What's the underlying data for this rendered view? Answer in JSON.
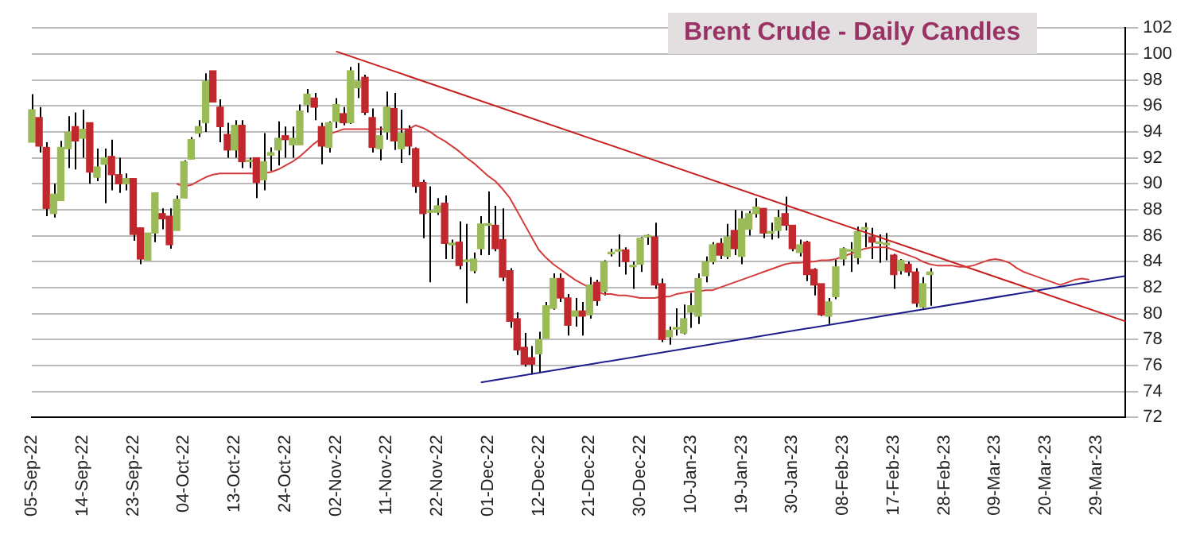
{
  "chart_data": {
    "type": "candlestick",
    "title": "Brent Crude - Daily Candles",
    "categories": [
      "05-Sep-22",
      null,
      null,
      null,
      null,
      null,
      null,
      "14-Sep-22",
      null,
      null,
      null,
      null,
      null,
      null,
      "23-Sep-22",
      null,
      null,
      null,
      null,
      null,
      null,
      "04-Oct-22",
      null,
      null,
      null,
      null,
      null,
      null,
      "13-Oct-22",
      null,
      null,
      null,
      null,
      null,
      null,
      "24-Oct-22",
      null,
      null,
      null,
      null,
      null,
      null,
      "02-Nov-22",
      null,
      null,
      null,
      null,
      null,
      null,
      "11-Nov-22",
      null,
      null,
      null,
      null,
      null,
      null,
      "22-Nov-22",
      null,
      null,
      null,
      null,
      null,
      null,
      "01-Dec-22",
      null,
      null,
      null,
      null,
      null,
      null,
      "12-Dec-22",
      null,
      null,
      null,
      null,
      null,
      null,
      "21-Dec-22",
      null,
      null,
      null,
      null,
      null,
      null,
      "30-Dec-22",
      null,
      null,
      null,
      null,
      null,
      null,
      "10-Jan-23",
      null,
      null,
      null,
      null,
      null,
      null,
      "19-Jan-23",
      null,
      null,
      null,
      null,
      null,
      null,
      "30-Jan-23",
      null,
      null,
      null,
      null,
      null,
      null,
      "08-Feb-23",
      null,
      null,
      null,
      null,
      null,
      null,
      "17-Feb-23",
      null,
      null,
      null,
      null,
      null,
      null,
      "28-Feb-23",
      null,
      null,
      null,
      null,
      null,
      null,
      "09-Mar-23",
      null,
      null,
      null,
      null,
      null,
      null,
      "20-Mar-23",
      null,
      null,
      null,
      null,
      null,
      null,
      "29-Mar-23",
      null,
      null,
      null,
      null
    ],
    "ohlc": [
      [
        93.2,
        96.9,
        93.2,
        95.7
      ],
      [
        95.1,
        95.9,
        92.4,
        92.9
      ],
      [
        92.8,
        93.2,
        87.5,
        88.1
      ],
      [
        87.7,
        90.0,
        87.4,
        89.2
      ],
      [
        88.7,
        93.3,
        88.7,
        92.8
      ],
      [
        92.7,
        95.2,
        91.2,
        94.0
      ],
      [
        94.4,
        95.5,
        91.1,
        93.3
      ],
      [
        93.5,
        95.7,
        92.0,
        94.2
      ],
      [
        94.7,
        94.7,
        90.0,
        90.9
      ],
      [
        90.5,
        92.7,
        90.2,
        91.3
      ],
      [
        91.5,
        92.7,
        88.5,
        92.0
      ],
      [
        92.1,
        93.4,
        89.5,
        90.7
      ],
      [
        90.7,
        92.0,
        89.3,
        90.0
      ],
      [
        90.0,
        90.8,
        89.5,
        90.4
      ],
      [
        90.4,
        90.4,
        85.6,
        86.1
      ],
      [
        86.6,
        86.6,
        83.8,
        84.2
      ],
      [
        84.1,
        86.2,
        84.1,
        86.2
      ],
      [
        86.2,
        89.3,
        85.5,
        89.3
      ],
      [
        87.7,
        88.1,
        86.5,
        87.3
      ],
      [
        87.5,
        88.1,
        85.0,
        85.3
      ],
      [
        86.4,
        89.1,
        86.4,
        88.8
      ],
      [
        88.9,
        91.8,
        88.9,
        91.7
      ],
      [
        91.9,
        93.6,
        91.9,
        93.4
      ],
      [
        93.9,
        94.9,
        93.6,
        94.4
      ],
      [
        94.7,
        98.5,
        94.0,
        97.9
      ],
      [
        98.7,
        98.7,
        96.3,
        96.3
      ],
      [
        95.9,
        96.5,
        93.2,
        94.4
      ],
      [
        93.8,
        94.7,
        92.0,
        92.6
      ],
      [
        92.6,
        94.9,
        92.0,
        94.5
      ],
      [
        94.5,
        94.9,
        91.2,
        91.7
      ],
      [
        91.7,
        92.0,
        91.2,
        91.7
      ],
      [
        92.0,
        92.0,
        88.9,
        90.1
      ],
      [
        90.3,
        93.9,
        89.5,
        91.7
      ],
      [
        92.2,
        92.8,
        91.0,
        92.4
      ],
      [
        92.6,
        94.8,
        91.4,
        93.5
      ],
      [
        93.7,
        94.4,
        92.0,
        93.4
      ],
      [
        93.0,
        94.4,
        92.0,
        93.5
      ],
      [
        93.0,
        96.1,
        93.0,
        95.6
      ],
      [
        96.1,
        97.3,
        95.5,
        96.9
      ],
      [
        96.6,
        97.0,
        94.9,
        95.9
      ],
      [
        94.4,
        94.7,
        91.5,
        92.9
      ],
      [
        92.8,
        94.8,
        92.4,
        94.7
      ],
      [
        94.8,
        96.6,
        94.3,
        96.1
      ],
      [
        95.4,
        95.9,
        94.5,
        94.7
      ],
      [
        94.7,
        99.0,
        94.6,
        98.7
      ],
      [
        97.4,
        99.3,
        96.6,
        97.9
      ],
      [
        98.2,
        98.4,
        95.3,
        95.5
      ],
      [
        95.1,
        95.8,
        92.4,
        92.8
      ],
      [
        92.7,
        94.4,
        91.8,
        93.7
      ],
      [
        94.0,
        97.1,
        93.4,
        95.9
      ],
      [
        95.8,
        97.0,
        92.6,
        93.3
      ],
      [
        92.7,
        95.7,
        91.6,
        93.9
      ],
      [
        94.2,
        94.5,
        92.2,
        92.9
      ],
      [
        92.7,
        92.8,
        89.3,
        89.8
      ],
      [
        90.1,
        90.3,
        85.8,
        87.7
      ],
      [
        87.8,
        89.8,
        82.4,
        87.8
      ],
      [
        87.8,
        88.9,
        87.6,
        88.3
      ],
      [
        88.5,
        89.1,
        84.2,
        85.4
      ],
      [
        85.3,
        85.7,
        84.2,
        85.3
      ],
      [
        85.5,
        87.1,
        83.4,
        83.7
      ],
      [
        84.0,
        86.9,
        80.8,
        84.0
      ],
      [
        83.3,
        84.7,
        83.1,
        84.2
      ],
      [
        85.0,
        87.5,
        84.5,
        86.9
      ],
      [
        86.8,
        89.4,
        84.5,
        86.8
      ],
      [
        86.8,
        88.3,
        84.8,
        85.0
      ],
      [
        85.7,
        88.1,
        82.5,
        82.8
      ],
      [
        83.3,
        83.5,
        78.9,
        79.4
      ],
      [
        79.6,
        80.1,
        76.8,
        77.2
      ],
      [
        77.4,
        78.5,
        75.9,
        76.1
      ],
      [
        76.6,
        77.5,
        75.3,
        76.1
      ],
      [
        76.9,
        78.6,
        75.5,
        78.0
      ],
      [
        78.1,
        80.9,
        78.1,
        80.6
      ],
      [
        80.4,
        83.1,
        80.3,
        82.7
      ],
      [
        82.7,
        83.1,
        80.9,
        81.2
      ],
      [
        81.2,
        81.5,
        78.3,
        79.1
      ],
      [
        79.8,
        81.2,
        79.0,
        80.2
      ],
      [
        80.2,
        80.9,
        78.3,
        79.8
      ],
      [
        79.9,
        82.8,
        79.6,
        82.2
      ],
      [
        82.4,
        82.6,
        80.6,
        81.0
      ],
      [
        81.7,
        84.1,
        81.4,
        84.0
      ],
      [
        84.6,
        85.0,
        84.4,
        84.7
      ],
      [
        84.8,
        86.1,
        83.6,
        84.9
      ],
      [
        84.9,
        85.1,
        83.0,
        84.0
      ],
      [
        83.6,
        84.0,
        81.9,
        83.6
      ],
      [
        83.8,
        85.9,
        83.2,
        85.8
      ],
      [
        85.9,
        86.1,
        85.3,
        86.0
      ],
      [
        85.9,
        87.0,
        81.9,
        82.2
      ],
      [
        82.3,
        82.7,
        77.8,
        78.0
      ],
      [
        78.2,
        79.0,
        77.6,
        78.7
      ],
      [
        78.8,
        80.4,
        78.3,
        78.8
      ],
      [
        78.5,
        80.7,
        78.4,
        79.6
      ],
      [
        80.1,
        81.6,
        78.9,
        80.6
      ],
      [
        79.8,
        83.1,
        79.2,
        82.7
      ],
      [
        82.9,
        84.4,
        82.4,
        84.0
      ],
      [
        84.0,
        85.5,
        83.8,
        85.3
      ],
      [
        85.4,
        85.8,
        84.2,
        84.5
      ],
      [
        84.4,
        86.9,
        84.2,
        85.9
      ],
      [
        86.4,
        88.0,
        84.5,
        85.0
      ],
      [
        84.4,
        87.9,
        83.8,
        87.3
      ],
      [
        86.5,
        87.9,
        86.0,
        87.7
      ],
      [
        87.7,
        88.9,
        87.4,
        88.2
      ],
      [
        88.1,
        88.1,
        85.8,
        86.2
      ],
      [
        86.2,
        87.0,
        85.7,
        86.2
      ],
      [
        86.4,
        88.0,
        85.8,
        87.4
      ],
      [
        87.7,
        89.0,
        86.4,
        86.8
      ],
      [
        86.8,
        86.8,
        84.8,
        85.0
      ],
      [
        84.7,
        85.7,
        84.4,
        85.3
      ],
      [
        85.5,
        85.6,
        82.5,
        83.0
      ],
      [
        83.4,
        83.5,
        81.4,
        82.2
      ],
      [
        82.3,
        82.3,
        79.8,
        79.9
      ],
      [
        79.8,
        81.2,
        79.2,
        80.9
      ],
      [
        81.3,
        84.2,
        81.1,
        83.6
      ],
      [
        84.2,
        85.1,
        83.7,
        85.0
      ],
      [
        84.8,
        85.5,
        83.2,
        84.8
      ],
      [
        84.3,
        86.7,
        83.8,
        86.3
      ],
      [
        86.5,
        87.0,
        85.1,
        86.5
      ],
      [
        85.9,
        86.6,
        84.2,
        85.5
      ],
      [
        85.4,
        86.1,
        83.9,
        85.4
      ],
      [
        85.3,
        86.2,
        84.1,
        85.3
      ],
      [
        84.5,
        84.6,
        81.9,
        83.0
      ],
      [
        83.3,
        84.2,
        83.0,
        84.1
      ],
      [
        83.8,
        84.0,
        82.9,
        83.2
      ],
      [
        83.2,
        83.5,
        80.5,
        80.8
      ],
      [
        80.5,
        82.8,
        80.4,
        82.3
      ],
      [
        83.0,
        83.5,
        80.6,
        83.2
      ],
      null,
      null,
      null,
      null,
      null,
      null,
      null,
      null,
      null,
      null,
      null,
      null,
      null,
      null,
      null,
      null,
      null,
      null,
      null,
      null,
      null,
      null,
      null,
      null,
      null,
      null,
      null
    ],
    "colors": [
      "#9bbb59",
      "#c0282d",
      "#c0282d",
      "#9bbb59",
      "#9bbb59",
      "#9bbb59",
      "#c0282d",
      "#9bbb59",
      "#c0282d",
      "#9bbb59",
      "#9bbb59",
      "#c0282d",
      "#c0282d",
      "#9bbb59",
      "#c0282d",
      "#c0282d",
      "#9bbb59",
      "#9bbb59",
      "#c0282d",
      "#c0282d",
      "#9bbb59",
      "#9bbb59",
      "#9bbb59",
      "#9bbb59",
      "#9bbb59",
      "#c0282d",
      "#c0282d",
      "#c0282d",
      "#9bbb59",
      "#c0282d",
      "#9bbb59",
      "#c0282d",
      "#9bbb59",
      "#9bbb59",
      "#9bbb59",
      "#c0282d",
      "#9bbb59",
      "#9bbb59",
      "#9bbb59",
      "#c0282d",
      "#c0282d",
      "#9bbb59",
      "#9bbb59",
      "#c0282d",
      "#9bbb59",
      "#9bbb59",
      "#c0282d",
      "#c0282d",
      "#9bbb59",
      "#9bbb59",
      "#c0282d",
      "#9bbb59",
      "#c0282d",
      "#c0282d",
      "#c0282d",
      "#9bbb59",
      "#9bbb59",
      "#c0282d",
      "#9bbb59",
      "#c0282d",
      "#9bbb59",
      "#9bbb59",
      "#9bbb59",
      "#9bbb59",
      "#c0282d",
      "#c0282d",
      "#c0282d",
      "#c0282d",
      "#c0282d",
      "#c0282d",
      "#9bbb59",
      "#9bbb59",
      "#9bbb59",
      "#c0282d",
      "#c0282d",
      "#9bbb59",
      "#c0282d",
      "#9bbb59",
      "#c0282d",
      "#9bbb59",
      "#9bbb59",
      "#9bbb59",
      "#c0282d",
      "#9bbb59",
      "#9bbb59",
      "#9bbb59",
      "#c0282d",
      "#c0282d",
      "#9bbb59",
      "#9bbb59",
      "#9bbb59",
      "#9bbb59",
      "#9bbb59",
      "#9bbb59",
      "#9bbb59",
      "#c0282d",
      "#9bbb59",
      "#c0282d",
      "#9bbb59",
      "#9bbb59",
      "#9bbb59",
      "#c0282d",
      "#9bbb59",
      "#9bbb59",
      "#c0282d",
      "#c0282d",
      "#9bbb59",
      "#c0282d",
      "#c0282d",
      "#c0282d",
      "#9bbb59",
      "#9bbb59",
      "#9bbb59",
      "#9bbb59",
      "#9bbb59",
      "#9bbb59",
      "#c0282d",
      "#9bbb59",
      "#9bbb59",
      "#c0282d",
      "#9bbb59",
      "#c0282d",
      "#c0282d",
      "#9bbb59",
      "#9bbb59",
      null,
      null,
      null,
      null,
      null,
      null,
      null,
      null,
      null,
      null,
      null,
      null,
      null,
      null,
      null,
      null,
      null,
      null,
      null,
      null,
      null,
      null,
      null,
      null,
      null,
      null,
      null
    ],
    "series": [
      {
        "type": "line",
        "color": "#d43c3c",
        "values": [
          null,
          null,
          null,
          null,
          null,
          null,
          null,
          null,
          null,
          null,
          null,
          null,
          null,
          null,
          null,
          null,
          null,
          null,
          null,
          null,
          90.0,
          89.8,
          89.9,
          90.2,
          90.5,
          90.7,
          90.8,
          90.8,
          90.8,
          90.8,
          90.8,
          90.8,
          90.8,
          90.9,
          91.1,
          91.4,
          91.7,
          92.1,
          92.6,
          93.1,
          93.5,
          93.8,
          94.0,
          94.2,
          94.2,
          94.2,
          94.2,
          94.2,
          94.2,
          94.2,
          94.2,
          94.2,
          94.2,
          94.5,
          94.3,
          94.0,
          93.6,
          93.3,
          92.9,
          92.5,
          92.0,
          91.6,
          91.1,
          90.6,
          90.2,
          89.6,
          88.9,
          87.9,
          86.9,
          85.9,
          84.9,
          84.3,
          83.8,
          83.4,
          83.0,
          82.6,
          82.3,
          82.0,
          81.7,
          81.5,
          81.5,
          81.4,
          81.4,
          81.3,
          81.2,
          81.2,
          81.2,
          81.3,
          81.3,
          81.5,
          81.6,
          81.7,
          81.7,
          81.8,
          81.8,
          82.0,
          82.2,
          82.4,
          82.6,
          82.8,
          83.0,
          83.2,
          83.4,
          83.6,
          83.8,
          83.9,
          83.9,
          84.0,
          84.0,
          84.1,
          84.1,
          84.2,
          84.4,
          84.6,
          84.8,
          85.0,
          85.1,
          85.1,
          85.1,
          84.9,
          84.7,
          84.5,
          84.3,
          84.0,
          83.8,
          83.7,
          83.7,
          83.7,
          83.6,
          83.6,
          83.7,
          83.9,
          84.1,
          84.2,
          84.1,
          83.9,
          83.5,
          83.2,
          83.0,
          82.8,
          82.6,
          82.4,
          82.2,
          82.4,
          82.6,
          82.7,
          82.6,
          null,
          null,
          null,
          null,
          null
        ]
      },
      {
        "type": "line",
        "color": "#c81e1e",
        "values": [
          null,
          null,
          null,
          null,
          null,
          null,
          null,
          null,
          null,
          null,
          null,
          null,
          null,
          null,
          null,
          null,
          null,
          null,
          null,
          null,
          null,
          null,
          null,
          null,
          null,
          null,
          null,
          null,
          null,
          null,
          null,
          null,
          null,
          null,
          null,
          null,
          null,
          null,
          null,
          null,
          null,
          null,
          100.2,
          null,
          null,
          null,
          null,
          null,
          null,
          null,
          null,
          null,
          null,
          null,
          null,
          null,
          null,
          null,
          null,
          null,
          null,
          null,
          null,
          null,
          null,
          null,
          null,
          null,
          null,
          null,
          null,
          null,
          null,
          null,
          null,
          null,
          null,
          null,
          null,
          null,
          null,
          null,
          null,
          null,
          null,
          null,
          null,
          null,
          null,
          null,
          null,
          null,
          null,
          null,
          null,
          null,
          null,
          null,
          null,
          null,
          null,
          null,
          null,
          null,
          null,
          null,
          null,
          null,
          null,
          null,
          null,
          null,
          null,
          null,
          null,
          null,
          null,
          null,
          null,
          null,
          null,
          null,
          null,
          null,
          null,
          null,
          null,
          null,
          null,
          null,
          null,
          null,
          null,
          null,
          null,
          null,
          null,
          null,
          null,
          null,
          null,
          null,
          null,
          null,
          null,
          null,
          null,
          null,
          null,
          null,
          null,
          79.4
        ]
      },
      {
        "type": "line",
        "color": "#1c1c8c",
        "values": [
          null,
          null,
          null,
          null,
          null,
          null,
          null,
          null,
          null,
          null,
          null,
          null,
          null,
          null,
          null,
          null,
          null,
          null,
          null,
          null,
          null,
          null,
          null,
          null,
          null,
          null,
          null,
          null,
          null,
          null,
          null,
          null,
          null,
          null,
          null,
          null,
          null,
          null,
          null,
          null,
          null,
          null,
          null,
          null,
          null,
          null,
          null,
          null,
          null,
          null,
          null,
          null,
          null,
          null,
          null,
          null,
          null,
          null,
          null,
          null,
          null,
          null,
          74.7,
          null,
          null,
          null,
          null,
          null,
          null,
          null,
          null,
          null,
          null,
          null,
          null,
          null,
          null,
          null,
          null,
          null,
          null,
          null,
          null,
          null,
          null,
          null,
          null,
          null,
          null,
          null,
          null,
          null,
          null,
          null,
          null,
          null,
          null,
          null,
          null,
          null,
          null,
          null,
          null,
          null,
          null,
          null,
          null,
          null,
          null,
          null,
          null,
          null,
          null,
          null,
          null,
          null,
          null,
          null,
          null,
          null,
          null,
          null,
          null,
          null,
          null,
          null,
          null,
          null,
          null,
          null,
          null,
          null,
          null,
          null,
          null,
          null,
          null,
          null,
          null,
          null,
          null,
          null,
          null,
          null,
          null,
          null,
          null,
          null,
          null,
          null,
          null,
          82.9
        ]
      }
    ],
    "ylim": [
      72,
      102
    ],
    "yticks": [
      72,
      74,
      76,
      78,
      80,
      82,
      84,
      86,
      88,
      90,
      92,
      94,
      96,
      98,
      100,
      102
    ],
    "grid": "y"
  }
}
